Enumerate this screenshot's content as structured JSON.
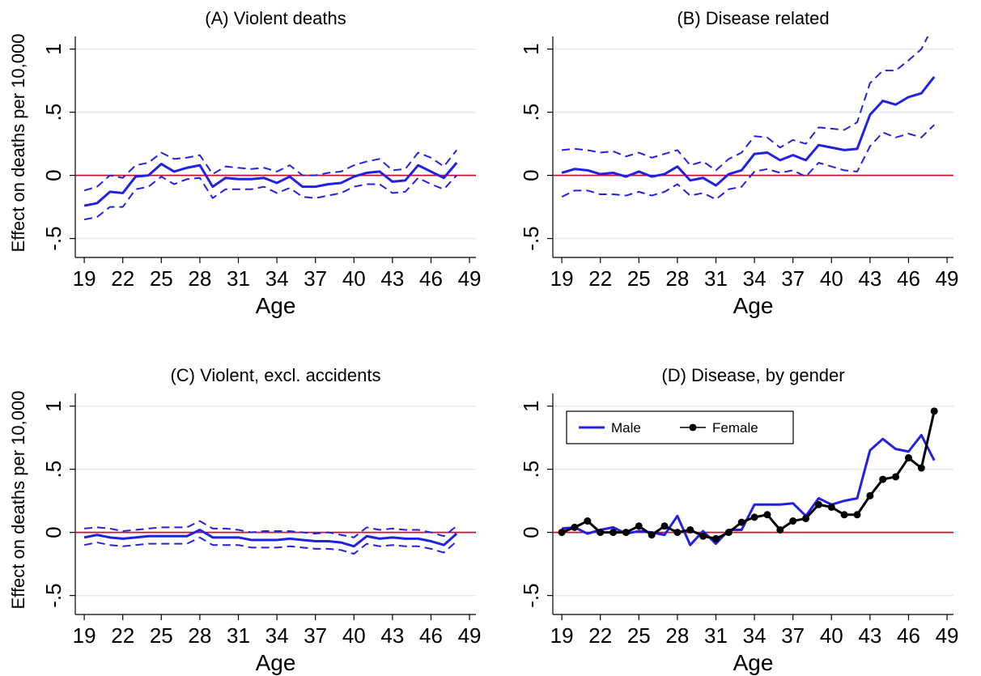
{
  "chart_data": [
    {
      "type": "line",
      "title": "(A) Violent deaths",
      "xlabel": "Age",
      "ylabel": "Effect on deaths per 10,000",
      "x": [
        19,
        20,
        21,
        22,
        23,
        24,
        25,
        26,
        27,
        28,
        29,
        30,
        31,
        32,
        33,
        34,
        35,
        36,
        37,
        38,
        39,
        40,
        41,
        42,
        43,
        44,
        45,
        46,
        47,
        48
      ],
      "xlim": [
        18.3,
        49.5
      ],
      "xticks": [
        19,
        22,
        25,
        28,
        31,
        34,
        37,
        40,
        43,
        46,
        49
      ],
      "ylim": [
        -0.65,
        1.1
      ],
      "yticks": [
        {
          "value": -0.5,
          "label": "-.5"
        },
        0,
        {
          "value": 0.5,
          "label": ".5"
        },
        1
      ],
      "grid": true,
      "reference_line": {
        "value": 0,
        "color": "#c8102e"
      },
      "series": [
        {
          "color": "#2121e6",
          "dashed": false,
          "values": [
            -0.24,
            -0.22,
            -0.13,
            -0.14,
            -0.01,
            0.0,
            0.09,
            0.03,
            0.06,
            0.08,
            -0.09,
            -0.02,
            -0.03,
            -0.03,
            -0.02,
            -0.06,
            -0.01,
            -0.09,
            -0.09,
            -0.07,
            -0.06,
            -0.01,
            0.02,
            0.03,
            -0.05,
            -0.04,
            0.08,
            0.03,
            -0.02,
            0.1
          ]
        },
        {
          "color": "#2121e6",
          "dashed": true,
          "values": [
            -0.12,
            -0.09,
            0.0,
            -0.02,
            0.08,
            0.1,
            0.18,
            0.13,
            0.14,
            0.16,
            0.01,
            0.07,
            0.06,
            0.05,
            0.06,
            0.03,
            0.08,
            0.0,
            0.0,
            0.02,
            0.03,
            0.08,
            0.11,
            0.13,
            0.04,
            0.05,
            0.18,
            0.14,
            0.07,
            0.2
          ]
        },
        {
          "color": "#2121e6",
          "dashed": true,
          "values": [
            -0.35,
            -0.33,
            -0.25,
            -0.25,
            -0.11,
            -0.09,
            -0.01,
            -0.07,
            -0.03,
            -0.02,
            -0.18,
            -0.11,
            -0.11,
            -0.11,
            -0.09,
            -0.14,
            -0.1,
            -0.17,
            -0.18,
            -0.16,
            -0.14,
            -0.09,
            -0.07,
            -0.07,
            -0.14,
            -0.13,
            -0.02,
            -0.07,
            -0.11,
            0.0
          ]
        }
      ]
    },
    {
      "type": "line",
      "title": "(B) Disease related",
      "xlabel": "Age",
      "x": [
        19,
        20,
        21,
        22,
        23,
        24,
        25,
        26,
        27,
        28,
        29,
        30,
        31,
        32,
        33,
        34,
        35,
        36,
        37,
        38,
        39,
        40,
        41,
        42,
        43,
        44,
        45,
        46,
        47,
        48
      ],
      "xlim": [
        18.3,
        49.5
      ],
      "xticks": [
        19,
        22,
        25,
        28,
        31,
        34,
        37,
        40,
        43,
        46,
        49
      ],
      "ylim": [
        -0.65,
        1.1
      ],
      "yticks": [
        {
          "value": -0.5,
          "label": "-.5"
        },
        0,
        {
          "value": 0.5,
          "label": ".5"
        },
        1
      ],
      "grid": true,
      "reference_line": {
        "value": 0,
        "color": "#c8102e"
      },
      "series": [
        {
          "color": "#2121e6",
          "dashed": false,
          "values": [
            0.02,
            0.05,
            0.04,
            0.01,
            0.02,
            -0.01,
            0.03,
            -0.01,
            0.01,
            0.07,
            -0.04,
            -0.02,
            -0.08,
            0.01,
            0.04,
            0.17,
            0.18,
            0.12,
            0.16,
            0.12,
            0.24,
            0.22,
            0.2,
            0.21,
            0.48,
            0.59,
            0.56,
            0.62,
            0.65,
            0.78
          ]
        },
        {
          "color": "#2121e6",
          "dashed": true,
          "values": [
            0.2,
            0.21,
            0.2,
            0.18,
            0.19,
            0.15,
            0.18,
            0.14,
            0.17,
            0.2,
            0.08,
            0.11,
            0.04,
            0.13,
            0.18,
            0.31,
            0.3,
            0.22,
            0.28,
            0.25,
            0.38,
            0.37,
            0.36,
            0.42,
            0.73,
            0.83,
            0.83,
            0.91,
            1.0,
            1.2
          ]
        },
        {
          "color": "#2121e6",
          "dashed": true,
          "values": [
            -0.17,
            -0.12,
            -0.12,
            -0.15,
            -0.15,
            -0.16,
            -0.13,
            -0.16,
            -0.13,
            -0.07,
            -0.16,
            -0.14,
            -0.19,
            -0.11,
            -0.09,
            0.03,
            0.05,
            0.02,
            0.04,
            -0.01,
            0.1,
            0.07,
            0.04,
            0.03,
            0.23,
            0.34,
            0.3,
            0.33,
            0.3,
            0.4
          ]
        }
      ]
    },
    {
      "type": "line",
      "title": "(C) Violent, excl. accidents",
      "xlabel": "Age",
      "ylabel": "Effect on deaths per 10,000",
      "x": [
        19,
        20,
        21,
        22,
        23,
        24,
        25,
        26,
        27,
        28,
        29,
        30,
        31,
        32,
        33,
        34,
        35,
        36,
        37,
        38,
        39,
        40,
        41,
        42,
        43,
        44,
        45,
        46,
        47,
        48
      ],
      "xlim": [
        18.3,
        49.5
      ],
      "xticks": [
        19,
        22,
        25,
        28,
        31,
        34,
        37,
        40,
        43,
        46,
        49
      ],
      "ylim": [
        -0.65,
        1.1
      ],
      "yticks": [
        {
          "value": -0.5,
          "label": "-.5"
        },
        0,
        {
          "value": 0.5,
          "label": ".5"
        },
        1
      ],
      "grid": true,
      "reference_line": {
        "value": 0,
        "color": "#c8102e"
      },
      "series": [
        {
          "color": "#2121e6",
          "dashed": false,
          "values": [
            -0.04,
            -0.02,
            -0.04,
            -0.05,
            -0.04,
            -0.03,
            -0.03,
            -0.03,
            -0.03,
            0.02,
            -0.04,
            -0.04,
            -0.04,
            -0.06,
            -0.06,
            -0.06,
            -0.05,
            -0.06,
            -0.07,
            -0.07,
            -0.08,
            -0.11,
            -0.03,
            -0.05,
            -0.04,
            -0.05,
            -0.05,
            -0.07,
            -0.1,
            -0.01
          ]
        },
        {
          "color": "#2121e6",
          "dashed": true,
          "values": [
            0.03,
            0.04,
            0.03,
            0.01,
            0.02,
            0.03,
            0.04,
            0.04,
            0.04,
            0.09,
            0.03,
            0.03,
            0.02,
            0.0,
            0.01,
            0.01,
            0.01,
            0.0,
            -0.01,
            0.0,
            -0.02,
            -0.04,
            0.04,
            0.02,
            0.03,
            0.02,
            0.02,
            0.0,
            -0.03,
            0.05
          ]
        },
        {
          "color": "#2121e6",
          "dashed": true,
          "values": [
            -0.1,
            -0.08,
            -0.1,
            -0.11,
            -0.1,
            -0.09,
            -0.09,
            -0.09,
            -0.09,
            -0.04,
            -0.1,
            -0.1,
            -0.1,
            -0.12,
            -0.12,
            -0.12,
            -0.11,
            -0.12,
            -0.13,
            -0.13,
            -0.14,
            -0.17,
            -0.09,
            -0.11,
            -0.1,
            -0.11,
            -0.11,
            -0.13,
            -0.16,
            -0.07
          ]
        }
      ]
    },
    {
      "type": "line",
      "title": "(D) Disease, by gender",
      "xlabel": "Age",
      "x": [
        19,
        20,
        21,
        22,
        23,
        24,
        25,
        26,
        27,
        28,
        29,
        30,
        31,
        32,
        33,
        34,
        35,
        36,
        37,
        38,
        39,
        40,
        41,
        42,
        43,
        44,
        45,
        46,
        47,
        48
      ],
      "xlim": [
        18.3,
        49.5
      ],
      "xticks": [
        19,
        22,
        25,
        28,
        31,
        34,
        37,
        40,
        43,
        46,
        49
      ],
      "ylim": [
        -0.65,
        1.1
      ],
      "yticks": [
        {
          "value": -0.5,
          "label": "-.5"
        },
        0,
        {
          "value": 0.5,
          "label": ".5"
        },
        1
      ],
      "grid": true,
      "reference_line": {
        "value": 0,
        "color": "#c8102e"
      },
      "legend": "top left",
      "series": [
        {
          "name": "Male",
          "color": "#2121e6",
          "dashed": false,
          "values": [
            0.03,
            0.04,
            -0.01,
            0.02,
            0.04,
            -0.01,
            0.01,
            0.0,
            -0.02,
            0.13,
            -0.1,
            0.01,
            -0.09,
            0.02,
            0.02,
            0.22,
            0.22,
            0.22,
            0.23,
            0.13,
            0.27,
            0.22,
            0.25,
            0.27,
            0.65,
            0.74,
            0.66,
            0.64,
            0.77,
            0.57
          ]
        },
        {
          "name": "Female",
          "color": "#000000",
          "dashed": false,
          "marker": "circle",
          "values": [
            0.0,
            0.04,
            0.09,
            0.0,
            0.0,
            0.0,
            0.05,
            -0.02,
            0.05,
            0.0,
            0.02,
            -0.03,
            -0.05,
            0.0,
            0.08,
            0.12,
            0.14,
            0.02,
            0.09,
            0.11,
            0.22,
            0.2,
            0.14,
            0.14,
            0.29,
            0.42,
            0.44,
            0.59,
            0.51,
            0.96
          ]
        }
      ]
    }
  ]
}
